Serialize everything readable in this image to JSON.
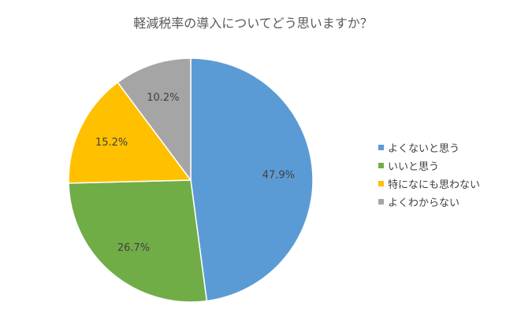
{
  "chart_data": {
    "type": "pie",
    "title": "軽減税率の導入についてどう思いますか？",
    "categories": [
      "よくないと思う",
      "いいと思う",
      "特になにも思わない",
      "よくわからない"
    ],
    "values": [
      47.9,
      26.7,
      15.2,
      10.2
    ],
    "data_labels": [
      "47.9%",
      "26.7%",
      "15.2%",
      "10.2%"
    ],
    "colors": [
      "#5B9BD5",
      "#70AD47",
      "#FFC000",
      "#A5A5A5"
    ],
    "legend_position": "right",
    "start_angle": "top, clockwise"
  }
}
